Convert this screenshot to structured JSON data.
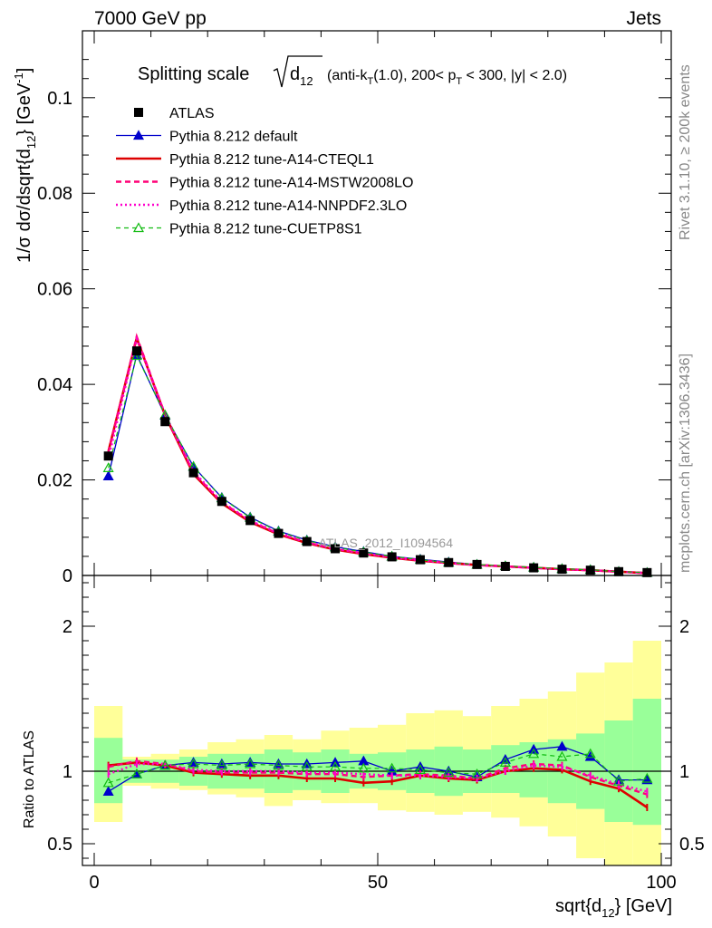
{
  "header": {
    "left": "7000 GeV pp",
    "right": "Jets"
  },
  "title_parts": {
    "lead": "Splitting scale",
    "var": "d",
    "var_sub": "12",
    "cond1": "(anti-k",
    "cond1_sub": "T",
    "cond2": "(1.0), 200< p",
    "cond2_sub": "T",
    "cond3": " < 300, |y| < 2.0)"
  },
  "side_labels": {
    "rivet": "Rivet 3.1.10, ≥ 200k events",
    "mcplots": "mcplots.cern.ch [arXiv:1306.3436]"
  },
  "watermark": "ATLAS_2012_I1094564",
  "y_label_top": "1/σ dσ/dsqrt{d12} [GeV-1]",
  "y_label_bottom": "Ratio to ATLAS",
  "x_label": "sqrt{d12} [GeV]",
  "colors": {
    "data": "#000000",
    "default": "#0000cc",
    "cteql1": "#dd0000",
    "mstw": "#ff0077",
    "nnpdf": "#ff00cc",
    "cuetp8s1": "#11bb11",
    "band_inner": "#99ff99",
    "band_outer": "#ffff99"
  },
  "legend": [
    {
      "key": "data",
      "label": "ATLAS"
    },
    {
      "key": "default",
      "label": "Pythia 8.212 default"
    },
    {
      "key": "cteql1",
      "label": "Pythia 8.212 tune-A14-CTEQL1"
    },
    {
      "key": "mstw",
      "label": "Pythia 8.212 tune-A14-MSTW2008LO"
    },
    {
      "key": "nnpdf",
      "label": "Pythia 8.212 tune-A14-NNPDF2.3LO"
    },
    {
      "key": "cuetp8s1",
      "label": "Pythia 8.212 tune-CUETP8S1"
    }
  ],
  "chart_data": {
    "type": "scatter",
    "x_ticks": [
      "0",
      "50",
      "100"
    ],
    "x_range": [
      0,
      100
    ],
    "top": {
      "ylim": [
        0,
        0.114
      ],
      "y_ticks": [
        "0",
        "0.02",
        "0.04",
        "0.06",
        "0.08",
        "0.1"
      ],
      "y_tick_values": [
        0,
        0.02,
        0.04,
        0.06,
        0.08,
        0.1
      ]
    },
    "bottom": {
      "ylim": [
        0.35,
        2.35
      ],
      "y_ticks": [
        "0.5",
        "1",
        "2"
      ],
      "y_tick_values": [
        0.5,
        1,
        2
      ]
    },
    "bin_edges": [
      0,
      5,
      10,
      15,
      20,
      25,
      30,
      35,
      40,
      45,
      50,
      55,
      60,
      65,
      70,
      75,
      80,
      85,
      90,
      95,
      100
    ],
    "x": [
      2.5,
      7.5,
      12.5,
      17.5,
      22.5,
      27.5,
      32.5,
      37.5,
      42.5,
      47.5,
      52.5,
      57.5,
      62.5,
      67.5,
      72.5,
      77.5,
      82.5,
      87.5,
      92.5,
      97.5
    ],
    "data": [
      0.025,
      0.047,
      0.0322,
      0.0215,
      0.0155,
      0.0115,
      0.0088,
      0.0071,
      0.0056,
      0.0047,
      0.0039,
      0.0033,
      0.0027,
      0.0023,
      0.0019,
      0.0016,
      0.0013,
      0.0011,
      0.0008,
      0.0006
    ],
    "series": [
      {
        "key": "default",
        "name": "Pythia 8.212 default",
        "marker": "triangle",
        "values": [
          0.0208,
          0.0462,
          0.0335,
          0.0228,
          0.0163,
          0.0122,
          0.0093,
          0.0074,
          0.006,
          0.005,
          0.004,
          0.0034,
          0.0028,
          0.0023,
          0.002,
          0.0017,
          0.0014,
          0.0012,
          0.0008,
          0.0006
        ],
        "ratio": [
          0.86,
          0.98,
          1.04,
          1.06,
          1.05,
          1.06,
          1.05,
          1.05,
          1.06,
          1.07,
          1.0,
          1.03,
          1.0,
          0.96,
          1.08,
          1.15,
          1.17,
          1.1,
          0.94,
          0.94
        ]
      },
      {
        "key": "cteql1",
        "name": "Pythia 8.212 tune-A14-CTEQL1",
        "marker": "none",
        "values": [
          0.026,
          0.0497,
          0.0335,
          0.0212,
          0.0151,
          0.0112,
          0.0086,
          0.0068,
          0.0054,
          0.0045,
          0.0037,
          0.0031,
          0.0026,
          0.0022,
          0.0019,
          0.0016,
          0.0013,
          0.0011,
          0.0008,
          0.0005
        ],
        "ratio": [
          1.04,
          1.06,
          1.04,
          0.99,
          0.98,
          0.97,
          0.97,
          0.95,
          0.95,
          0.92,
          0.93,
          0.97,
          0.95,
          0.94,
          1.0,
          1.02,
          1.01,
          0.93,
          0.88,
          0.75
        ]
      },
      {
        "key": "mstw",
        "name": "Pythia 8.212 tune-A14-MSTW2008LO",
        "marker": "none",
        "values": [
          0.0258,
          0.05,
          0.0336,
          0.0215,
          0.0153,
          0.0114,
          0.0087,
          0.0069,
          0.0055,
          0.0046,
          0.0038,
          0.0032,
          0.0026,
          0.0022,
          0.0019,
          0.0016,
          0.0013,
          0.0011,
          0.0008,
          0.0005
        ],
        "ratio": [
          1.03,
          1.07,
          1.05,
          1.0,
          0.99,
          0.99,
          0.99,
          0.98,
          0.98,
          0.96,
          0.97,
          0.98,
          0.97,
          0.95,
          1.02,
          1.05,
          1.04,
          0.96,
          0.9,
          0.84
        ]
      },
      {
        "key": "nnpdf",
        "name": "Pythia 8.212 tune-A14-NNPDF2.3LO",
        "marker": "none",
        "values": [
          0.0245,
          0.0495,
          0.0337,
          0.0218,
          0.0154,
          0.0115,
          0.0089,
          0.007,
          0.0056,
          0.0047,
          0.0038,
          0.0032,
          0.0026,
          0.0022,
          0.0019,
          0.0016,
          0.0013,
          0.0011,
          0.0008,
          0.0005
        ],
        "ratio": [
          0.98,
          1.05,
          1.05,
          1.01,
          1.0,
          1.0,
          1.0,
          0.99,
          0.99,
          0.98,
          0.97,
          0.97,
          0.96,
          0.95,
          1.0,
          1.04,
          1.03,
          0.97,
          0.91,
          0.86
        ]
      },
      {
        "key": "cuetp8s1",
        "name": "Pythia 8.212 tune-CUETP8S1",
        "marker": "triangle-open",
        "values": [
          0.0225,
          0.046,
          0.0336,
          0.0228,
          0.0162,
          0.0121,
          0.0092,
          0.0073,
          0.0059,
          0.0049,
          0.004,
          0.0033,
          0.0027,
          0.0023,
          0.002,
          0.0017,
          0.0014,
          0.0012,
          0.0008,
          0.0006
        ],
        "ratio": [
          0.92,
          0.98,
          1.04,
          1.05,
          1.04,
          1.05,
          1.04,
          1.03,
          1.03,
          1.02,
          1.02,
          1.01,
          0.99,
          0.98,
          1.06,
          1.12,
          1.1,
          1.12,
          0.93,
          0.95
        ]
      }
    ],
    "band_inner": [
      [
        0.78,
        1.23
      ],
      [
        0.92,
        1.08
      ],
      [
        0.92,
        1.08
      ],
      [
        0.9,
        1.1
      ],
      [
        0.88,
        1.12
      ],
      [
        0.88,
        1.12
      ],
      [
        0.85,
        1.15
      ],
      [
        0.87,
        1.13
      ],
      [
        0.85,
        1.15
      ],
      [
        0.88,
        1.12
      ],
      [
        0.87,
        1.13
      ],
      [
        0.85,
        1.15
      ],
      [
        0.83,
        1.17
      ],
      [
        0.85,
        1.15
      ],
      [
        0.85,
        1.18
      ],
      [
        0.82,
        1.2
      ],
      [
        0.78,
        1.22
      ],
      [
        0.74,
        1.26
      ],
      [
        0.65,
        1.35
      ],
      [
        0.63,
        1.5
      ]
    ],
    "band_outer": [
      [
        0.65,
        1.45
      ],
      [
        0.9,
        1.1
      ],
      [
        0.88,
        1.12
      ],
      [
        0.87,
        1.15
      ],
      [
        0.84,
        1.2
      ],
      [
        0.82,
        1.22
      ],
      [
        0.76,
        1.25
      ],
      [
        0.8,
        1.22
      ],
      [
        0.78,
        1.28
      ],
      [
        0.78,
        1.3
      ],
      [
        0.73,
        1.32
      ],
      [
        0.72,
        1.4
      ],
      [
        0.7,
        1.42
      ],
      [
        0.72,
        1.38
      ],
      [
        0.68,
        1.45
      ],
      [
        0.62,
        1.5
      ],
      [
        0.55,
        1.55
      ],
      [
        0.4,
        1.68
      ],
      [
        0.35,
        1.75
      ],
      [
        0.35,
        1.9
      ]
    ]
  }
}
